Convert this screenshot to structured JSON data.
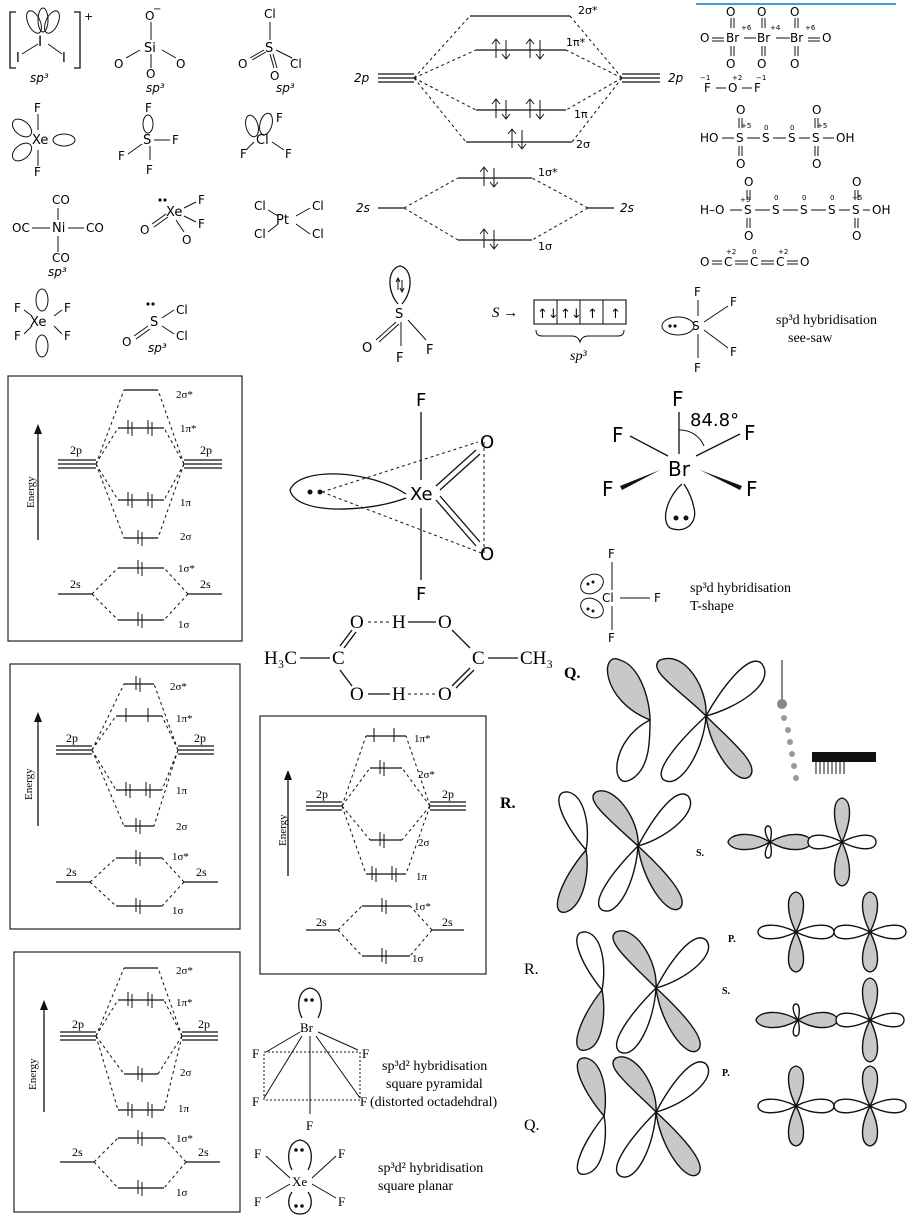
{
  "molecules": {
    "i3": {
      "label": "I",
      "charge": "+",
      "hyb": "sp³"
    },
    "sio4": {
      "center": "Si",
      "o": "O",
      "minus": "−",
      "hyb": "sp³"
    },
    "so2cl2": {
      "center": "S",
      "o": "O",
      "cl": "Cl",
      "hyb": "sp³"
    },
    "xef2": {
      "center": "Xe",
      "f": "F"
    },
    "sf4": {
      "center": "S",
      "f": "F"
    },
    "clf3": {
      "center": "Cl",
      "f": "F"
    },
    "nico4": {
      "center": "Ni",
      "co": "CO",
      "oc": "OC",
      "hyb": "sp³"
    },
    "xeo2f2": {
      "center": "Xe",
      "f": "F",
      "o": "O"
    },
    "ptcl4": {
      "center": "Pt",
      "cl": "Cl"
    },
    "xef4": {
      "center": "Xe",
      "f": "F"
    },
    "socl2": {
      "center": "S",
      "o": "O",
      "cl": "Cl",
      "hyb": "sp³"
    }
  },
  "mo_top": {
    "left": "2p",
    "right": "2p",
    "left_s": "2s",
    "right_s": "2s",
    "levels": [
      "2σ*",
      "1π*",
      "1π",
      "2σ",
      "1σ*",
      "1σ"
    ]
  },
  "oxidation": {
    "br3o8": {
      "o": "O",
      "br": "Br",
      "ox1": "+6",
      "ox2": "+4",
      "ox3": "+6"
    },
    "of2": {
      "f": "F",
      "o": "O",
      "ox_f": "−1",
      "ox_o": "+2"
    },
    "s4o6": {
      "ho": "HO",
      "oh": "OH",
      "s": "S",
      "o": "O",
      "ox_a": "+5",
      "ox_b": "0"
    },
    "s5o6": {
      "ho": "H–O",
      "oh": "OH",
      "s": "S",
      "o": "O",
      "ox_a": "+5",
      "ox_b": "0"
    },
    "c3o2": {
      "o": "O",
      "c": "C",
      "ox_a": "+2",
      "ox_b": "0"
    }
  },
  "sof2": {
    "s": "S",
    "o": "O",
    "f": "F"
  },
  "s_config": {
    "arrow": "S →",
    "boxes": [
      "↑↓",
      "↑↓",
      "↑",
      "↑"
    ],
    "hyb": "sp³"
  },
  "sf4_seesaw": {
    "s": "S",
    "f": "F",
    "hyb": "sp³d hybridisation",
    "shape": "see-saw"
  },
  "mo_boxes": {
    "energy": "Energy",
    "p": "2p",
    "s": "2s",
    "levels": [
      "2σ*",
      "1π*",
      "1π",
      "2σ",
      "1σ*",
      "1σ"
    ]
  },
  "xeo2f2_big": {
    "xe": "Xe",
    "o": "O",
    "f": "F"
  },
  "brf4": {
    "br": "Br",
    "f": "F",
    "angle": "84.8°"
  },
  "clf3_tshape": {
    "cl": "Cl",
    "f": "F",
    "hyb": "sp³d hybridisation",
    "shape": "T-shape"
  },
  "acetic_dimer": {
    "h3c": "H₃C",
    "ch3": "CH₃",
    "c": "C",
    "o": "O",
    "h": "H"
  },
  "brf5": {
    "br": "Br",
    "f": "F",
    "hyb": "sp³d² hybridisation",
    "shape1": "square pyramidal",
    "shape2": "(distorted octadehdral)"
  },
  "xef4_planar": {
    "xe": "Xe",
    "f": "F",
    "hyb": "sp³d² hybridisation",
    "shape": "square planar"
  },
  "orbital_labels": {
    "q1": "Q.",
    "r1": "R.",
    "s1": "S.",
    "r2": "R.",
    "p1": "P.",
    "s2": "S.",
    "q2": "Q.",
    "p2": "P."
  }
}
